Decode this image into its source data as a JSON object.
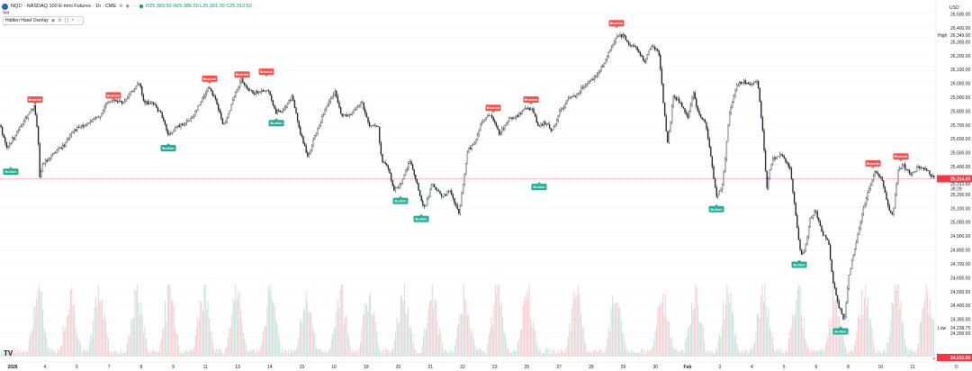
{
  "header": {
    "symbol": "NQ1! · NASDAQ 100 E-mini Futures · 1h · CME",
    "ohlc": "O25,383.50 H25,386.00 L25,301.00 C25,313.50",
    "vol_label": "Vol",
    "indicator": "Hidden Hand Overlay",
    "currency": "USD"
  },
  "price_axis": {
    "ticks": [
      "26,500.00",
      "26,400.00",
      "26,300.00",
      "26,200.00",
      "26,100.00",
      "26,000.00",
      "25,900.00",
      "25,800.00",
      "25,700.00",
      "25,600.00",
      "25,500.00",
      "25,400.00",
      "25,300.00",
      "25,200.00",
      "25,100.00",
      "25,000.00",
      "24,900.00",
      "24,800.00",
      "24,700.00",
      "24,600.00",
      "24,500.00",
      "24,400.00",
      "24,300.00",
      "24,200.00"
    ],
    "high_label": "High",
    "high_value": "26,349.00",
    "last_price": "25,314.00",
    "last_price_sub": "25,313.50",
    "countdown": "39:29",
    "low_label": "Low",
    "low_value": "24,238.75",
    "bottom_value": "24,033.00"
  },
  "time_axis": {
    "labels": [
      {
        "text": "2026",
        "bold": true
      },
      {
        "text": "4"
      },
      {
        "text": "6"
      },
      {
        "text": "7"
      },
      {
        "text": "8"
      },
      {
        "text": "9"
      },
      {
        "text": "11"
      },
      {
        "text": "13"
      },
      {
        "text": "14"
      },
      {
        "text": "15"
      },
      {
        "text": "16"
      },
      {
        "text": "18"
      },
      {
        "text": "20"
      },
      {
        "text": "21"
      },
      {
        "text": "22"
      },
      {
        "text": "23"
      },
      {
        "text": "25"
      },
      {
        "text": "27"
      },
      {
        "text": "28"
      },
      {
        "text": "29"
      },
      {
        "text": "30"
      },
      {
        "text": "Feb",
        "bold": true
      },
      {
        "text": "3"
      },
      {
        "text": "4"
      },
      {
        "text": "5"
      },
      {
        "text": "6"
      },
      {
        "text": "8"
      },
      {
        "text": "10"
      },
      {
        "text": "11"
      }
    ]
  },
  "signal_labels": {
    "bearish": "Bearish",
    "bullish": "Bullish"
  },
  "chart_data": {
    "type": "candlestick",
    "x_start_label": "2026",
    "y_range": [
      24033,
      26550
    ],
    "price_path": [
      [
        0,
        25700
      ],
      [
        8,
        25530
      ],
      [
        12,
        25580
      ],
      [
        22,
        25680
      ],
      [
        32,
        25780
      ],
      [
        38,
        25830
      ],
      [
        42,
        25650
      ],
      [
        44,
        25330
      ],
      [
        48,
        25420
      ],
      [
        60,
        25500
      ],
      [
        72,
        25560
      ],
      [
        80,
        25660
      ],
      [
        95,
        25700
      ],
      [
        110,
        25760
      ],
      [
        118,
        25850
      ],
      [
        125,
        25880
      ],
      [
        138,
        25860
      ],
      [
        148,
        25960
      ],
      [
        155,
        26000
      ],
      [
        160,
        25860
      ],
      [
        170,
        25860
      ],
      [
        180,
        25770
      ],
      [
        187,
        25620
      ],
      [
        195,
        25680
      ],
      [
        210,
        25730
      ],
      [
        222,
        25850
      ],
      [
        232,
        25980
      ],
      [
        240,
        25880
      ],
      [
        248,
        25690
      ],
      [
        258,
        25860
      ],
      [
        268,
        26030
      ],
      [
        275,
        25950
      ],
      [
        285,
        25930
      ],
      [
        295,
        25960
      ],
      [
        300,
        25930
      ],
      [
        306,
        25790
      ],
      [
        316,
        25820
      ],
      [
        325,
        25910
      ],
      [
        332,
        25680
      ],
      [
        342,
        25470
      ],
      [
        350,
        25620
      ],
      [
        360,
        25790
      ],
      [
        372,
        25940
      ],
      [
        380,
        25760
      ],
      [
        392,
        25790
      ],
      [
        402,
        25870
      ],
      [
        410,
        25700
      ],
      [
        420,
        25690
      ],
      [
        424,
        25450
      ],
      [
        430,
        25410
      ],
      [
        438,
        25230
      ],
      [
        445,
        25280
      ],
      [
        455,
        25440
      ],
      [
        462,
        25320
      ],
      [
        468,
        25150
      ],
      [
        472,
        25100
      ],
      [
        480,
        25280
      ],
      [
        490,
        25190
      ],
      [
        500,
        25220
      ],
      [
        510,
        25060
      ],
      [
        520,
        25520
      ],
      [
        528,
        25580
      ],
      [
        535,
        25730
      ],
      [
        545,
        25770
      ],
      [
        555,
        25640
      ],
      [
        565,
        25740
      ],
      [
        575,
        25770
      ],
      [
        585,
        25820
      ],
      [
        592,
        25820
      ],
      [
        598,
        25680
      ],
      [
        605,
        25720
      ],
      [
        614,
        25660
      ],
      [
        622,
        25800
      ],
      [
        632,
        25890
      ],
      [
        642,
        25930
      ],
      [
        652,
        26010
      ],
      [
        662,
        26050
      ],
      [
        670,
        26130
      ],
      [
        678,
        26240
      ],
      [
        686,
        26340
      ],
      [
        692,
        26350
      ],
      [
        700,
        26280
      ],
      [
        708,
        26250
      ],
      [
        716,
        26160
      ],
      [
        724,
        26270
      ],
      [
        732,
        26230
      ],
      [
        738,
        25800
      ],
      [
        742,
        25560
      ],
      [
        748,
        25910
      ],
      [
        756,
        25860
      ],
      [
        764,
        25750
      ],
      [
        770,
        25940
      ],
      [
        776,
        25780
      ],
      [
        784,
        25720
      ],
      [
        790,
        25470
      ],
      [
        796,
        25180
      ],
      [
        803,
        25270
      ],
      [
        810,
        25770
      ],
      [
        818,
        25990
      ],
      [
        826,
        26010
      ],
      [
        836,
        25990
      ],
      [
        842,
        26010
      ],
      [
        848,
        25620
      ],
      [
        852,
        25250
      ],
      [
        858,
        25460
      ],
      [
        868,
        25490
      ],
      [
        878,
        25390
      ],
      [
        884,
        25050
      ],
      [
        890,
        24750
      ],
      [
        895,
        24820
      ],
      [
        900,
        25030
      ],
      [
        906,
        25080
      ],
      [
        914,
        24920
      ],
      [
        920,
        24880
      ],
      [
        926,
        24560
      ],
      [
        932,
        24400
      ],
      [
        938,
        24290
      ],
      [
        944,
        24650
      ],
      [
        950,
        24810
      ],
      [
        958,
        25070
      ],
      [
        964,
        25210
      ],
      [
        972,
        25360
      ],
      [
        980,
        25320
      ],
      [
        986,
        25120
      ],
      [
        992,
        25040
      ],
      [
        998,
        25380
      ],
      [
        1004,
        25410
      ],
      [
        1012,
        25340
      ],
      [
        1020,
        25400
      ],
      [
        1030,
        25370
      ],
      [
        1038,
        25314
      ]
    ],
    "signals": [
      {
        "type": "bullish",
        "x": 12,
        "y": 25420
      },
      {
        "type": "bearish",
        "x": 39,
        "y": 25830
      },
      {
        "type": "bearish",
        "x": 126,
        "y": 25860
      },
      {
        "type": "bullish",
        "x": 187,
        "y": 25590
      },
      {
        "type": "bearish",
        "x": 233,
        "y": 25980
      },
      {
        "type": "bearish",
        "x": 269,
        "y": 26010
      },
      {
        "type": "bearish",
        "x": 296,
        "y": 26030
      },
      {
        "type": "bullish",
        "x": 307,
        "y": 25770
      },
      {
        "type": "bullish",
        "x": 445,
        "y": 25210
      },
      {
        "type": "bullish",
        "x": 468,
        "y": 25080
      },
      {
        "type": "bearish",
        "x": 548,
        "y": 25770
      },
      {
        "type": "bearish",
        "x": 590,
        "y": 25830
      },
      {
        "type": "bullish",
        "x": 599,
        "y": 25310
      },
      {
        "type": "bearish",
        "x": 685,
        "y": 26380
      },
      {
        "type": "bullish",
        "x": 796,
        "y": 25150
      },
      {
        "type": "bullish",
        "x": 888,
        "y": 24750
      },
      {
        "type": "bullish",
        "x": 934,
        "y": 24270
      },
      {
        "type": "bearish",
        "x": 970,
        "y": 25370
      },
      {
        "type": "bearish",
        "x": 1001,
        "y": 25420
      }
    ],
    "volume_peaks": [
      42,
      78,
      110,
      152,
      188,
      226,
      262,
      300,
      340,
      378,
      410,
      448,
      480,
      516,
      552,
      586,
      640,
      684,
      736,
      772,
      808,
      848,
      886,
      928,
      960,
      996,
      1030
    ]
  },
  "colors": {
    "up": "#089981",
    "down": "#f23645",
    "bearish_label": "#ef5350",
    "bullish_label": "#22ab94",
    "candle": "#131722",
    "axis_text": "#131722",
    "grid": "#f0f3fa"
  },
  "footer": {
    "logo": "TV",
    "go_live": "»"
  }
}
